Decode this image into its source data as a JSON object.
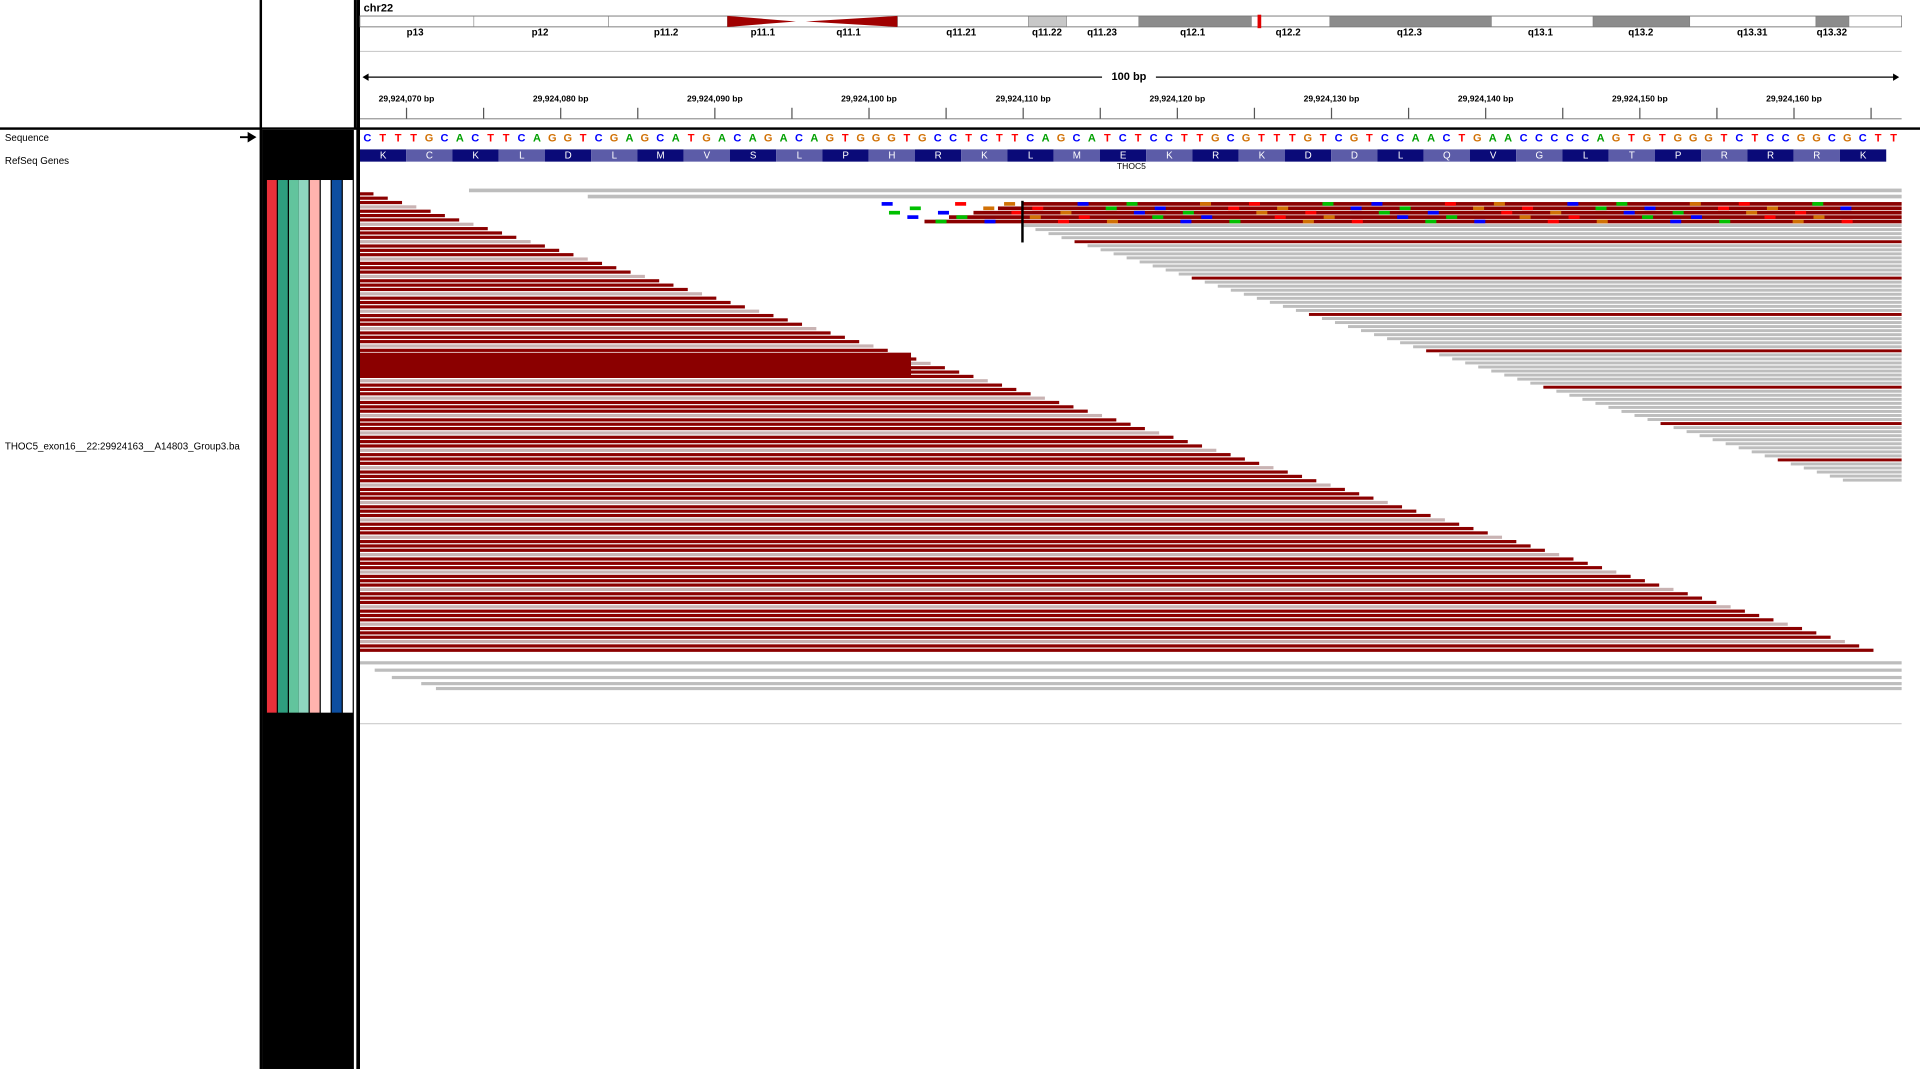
{
  "chromosome": "chr22",
  "bands": [
    "p13",
    "p12",
    "p11.2",
    "p11.1",
    "q11.1",
    "q11.21",
    "q11.22",
    "q11.23",
    "q12.1",
    "q12.2",
    "q12.3",
    "q13.1",
    "q13.2",
    "q13.31",
    "q13.32"
  ],
  "ruler": {
    "span": "100 bp",
    "tick_labels": [
      "29,924,070 bp",
      "29,924,080 bp",
      "29,924,090 bp",
      "29,924,100 bp",
      "29,924,110 bp",
      "29,924,120 bp",
      "29,924,130 bp",
      "29,924,140 bp",
      "29,924,150 bp",
      "29,924,160 bp"
    ]
  },
  "tracks": {
    "sequence": "Sequence",
    "genes": "RefSeq Genes",
    "alignment": "THOC5_exon16__22:29924163__A14803_Group3.ba"
  },
  "bases": [
    "C",
    "T",
    "T",
    "T",
    "G",
    "C",
    "A",
    "C",
    "T",
    "T",
    "C",
    "A",
    "G",
    "G",
    "T",
    "C",
    "G",
    "A",
    "G",
    "C",
    "A",
    "T",
    "G",
    "A",
    "C",
    "A",
    "G",
    "A",
    "C",
    "A",
    "G",
    "T",
    "G",
    "G",
    "G",
    "T",
    "G",
    "C",
    "C",
    "T",
    "C",
    "T",
    "T",
    "C",
    "A",
    "G",
    "C",
    "A",
    "T",
    "C",
    "T",
    "C",
    "C",
    "T",
    "T",
    "G",
    "C",
    "G",
    "T",
    "T",
    "T",
    "G",
    "T",
    "C",
    "G",
    "T",
    "C",
    "C",
    "A",
    "A",
    "C",
    "T",
    "G",
    "A",
    "A",
    "C",
    "C",
    "C",
    "C",
    "C",
    "A",
    "G",
    "T",
    "G",
    "T",
    "G",
    "G",
    "G",
    "T",
    "C",
    "T",
    "C",
    "C",
    "G",
    "G",
    "C",
    "G",
    "C",
    "T",
    "T"
  ],
  "amino_acids": [
    "K",
    "C",
    "K",
    "L",
    "D",
    "L",
    "M",
    "V",
    "S",
    "L",
    "P",
    "H",
    "R",
    "K",
    "L",
    "M",
    "E",
    "K",
    "R",
    "K",
    "D",
    "D",
    "L",
    "Q",
    "V",
    "G",
    "L",
    "T",
    "P",
    "R",
    "R",
    "R",
    "K"
  ],
  "gene": "THOC5"
}
